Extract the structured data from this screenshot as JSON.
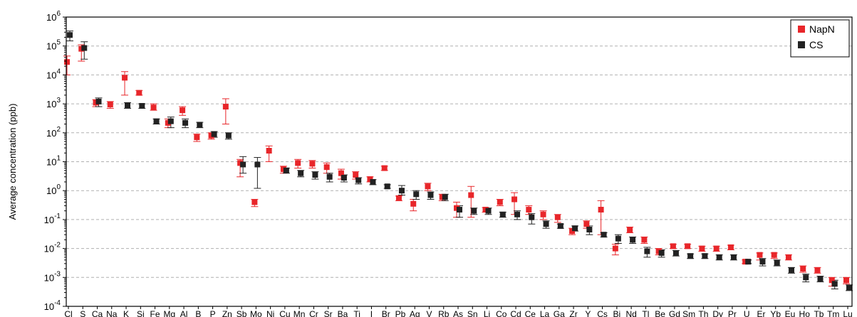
{
  "chart_data": {
    "type": "scatter",
    "title": "",
    "xlabel": "",
    "ylabel": "Average concentration (ppb)",
    "yscale": "log",
    "ylim": [
      0.0001,
      1000000
    ],
    "yticks": [
      {
        "base": "10",
        "exp": "-4",
        "value": 0.0001
      },
      {
        "base": "10",
        "exp": "-3",
        "value": 0.001
      },
      {
        "base": "10",
        "exp": "-2",
        "value": 0.01
      },
      {
        "base": "10",
        "exp": "-1",
        "value": 0.1
      },
      {
        "base": "10",
        "exp": "0",
        "value": 1
      },
      {
        "base": "10",
        "exp": "1",
        "value": 10
      },
      {
        "base": "10",
        "exp": "2",
        "value": 100
      },
      {
        "base": "10",
        "exp": "3",
        "value": 1000
      },
      {
        "base": "10",
        "exp": "4",
        "value": 10000
      },
      {
        "base": "10",
        "exp": "5",
        "value": 100000
      },
      {
        "base": "10",
        "exp": "6",
        "value": 1000000
      }
    ],
    "grid": "horizontal-dashed",
    "legend_position": "top-right",
    "categories": [
      "Cl",
      "S",
      "Ca",
      "Na",
      "K",
      "Si",
      "Fe",
      "Mg",
      "Al",
      "B",
      "P",
      "Zn",
      "Sb",
      "Mo",
      "Ni",
      "Cu",
      "Mn",
      "Cr",
      "Sr",
      "Ba",
      "Ti",
      "I",
      "Br",
      "Pb",
      "Ag",
      "V",
      "Rb",
      "As",
      "Sn",
      "Li",
      "Co",
      "Cd",
      "Ce",
      "La",
      "Ga",
      "Zr",
      "Y",
      "Cs",
      "Bi",
      "Nd",
      "Tl",
      "Be",
      "Gd",
      "Sm",
      "Th",
      "Dy",
      "Pr",
      "U",
      "Er",
      "Yb",
      "Eu",
      "Ho",
      "Tb",
      "Tm",
      "Lu"
    ],
    "series": [
      {
        "name": "NapN",
        "color": "#e8262a",
        "values": [
          28000,
          80000,
          1100,
          950,
          8000,
          2400,
          750,
          220,
          600,
          70,
          80,
          800,
          9,
          0.4,
          24,
          5.5,
          9,
          8.5,
          6.5,
          4,
          3.5,
          2.5,
          6,
          0.55,
          0.35,
          1.4,
          0.6,
          0.25,
          0.7,
          0.22,
          0.4,
          0.5,
          0.22,
          0.15,
          0.12,
          0.04,
          0.07,
          0.22,
          0.01,
          0.045,
          0.02,
          0.008,
          0.012,
          0.012,
          0.01,
          0.01,
          0.011,
          0.0035,
          0.006,
          0.006,
          0.005,
          0.002,
          0.0018,
          0.0008,
          0.0008
        ],
        "err_low": [
          10000,
          30000,
          800,
          700,
          2000,
          2000,
          600,
          150,
          400,
          50,
          60,
          200,
          3,
          0.28,
          10,
          4,
          6,
          6,
          4,
          2.5,
          2.5,
          2,
          5,
          0.45,
          0.2,
          1,
          0.45,
          0.12,
          0.12,
          0.18,
          0.3,
          0.15,
          0.15,
          0.1,
          0.08,
          0.03,
          0.05,
          0.03,
          0.006,
          0.035,
          0.015,
          0.006,
          0.01,
          0.01,
          0.008,
          0.008,
          0.009,
          0.003,
          0.004,
          0.0045,
          0.004,
          0.0015,
          0.0014,
          0.0005,
          0.0006
        ],
        "err_high": [
          45000,
          110000,
          1400,
          1200,
          13000,
          2900,
          1000,
          300,
          800,
          90,
          100,
          1500,
          12,
          0.5,
          35,
          7,
          12,
          11,
          9,
          5.5,
          4.5,
          3,
          7,
          0.65,
          0.5,
          1.8,
          0.75,
          0.4,
          1.4,
          0.26,
          0.5,
          0.85,
          0.3,
          0.2,
          0.15,
          0.05,
          0.09,
          0.45,
          0.014,
          0.055,
          0.025,
          0.01,
          0.014,
          0.014,
          0.012,
          0.012,
          0.013,
          0.004,
          0.007,
          0.007,
          0.006,
          0.0025,
          0.0022,
          0.001,
          0.001
        ]
      },
      {
        "name": "CS",
        "color": "#222222",
        "values": [
          240000,
          85000,
          1200,
          null,
          900,
          850,
          250,
          250,
          220,
          190,
          90,
          80,
          8,
          8,
          null,
          5,
          4,
          3.5,
          3,
          2.8,
          2.3,
          2,
          1.4,
          1,
          0.75,
          0.7,
          0.6,
          0.22,
          0.2,
          0.2,
          0.15,
          0.15,
          0.12,
          0.07,
          0.06,
          0.05,
          0.045,
          0.03,
          0.022,
          0.02,
          0.008,
          0.007,
          0.007,
          0.0055,
          0.0055,
          0.005,
          0.005,
          0.0035,
          0.0035,
          0.0032,
          0.0018,
          0.001,
          0.0009,
          0.0006,
          0.00045
        ],
        "err_low": [
          150000,
          35000,
          800,
          null,
          700,
          700,
          200,
          150,
          150,
          150,
          70,
          60,
          4,
          1.2,
          null,
          4,
          3,
          2.5,
          2,
          2,
          1.7,
          1.6,
          1.2,
          0.7,
          0.5,
          0.5,
          0.45,
          0.12,
          0.15,
          0.15,
          0.12,
          0.1,
          0.07,
          0.05,
          0.05,
          0.04,
          0.03,
          0.025,
          0.015,
          0.015,
          0.005,
          0.005,
          0.0055,
          0.0045,
          0.0045,
          0.004,
          0.004,
          0.003,
          0.0025,
          0.0025,
          0.0014,
          0.0007,
          0.0007,
          0.0004,
          0.00035
        ],
        "err_high": [
          330000,
          140000,
          1600,
          null,
          1100,
          1000,
          300,
          350,
          300,
          230,
          110,
          100,
          15,
          14,
          null,
          6,
          5,
          4.5,
          4,
          3.5,
          2.8,
          2.4,
          1.6,
          1.5,
          1,
          0.9,
          0.75,
          0.3,
          0.25,
          0.25,
          0.18,
          0.2,
          0.16,
          0.09,
          0.07,
          0.06,
          0.06,
          0.035,
          0.03,
          0.025,
          0.011,
          0.009,
          0.0085,
          0.0065,
          0.0065,
          0.006,
          0.006,
          0.004,
          0.0045,
          0.004,
          0.0022,
          0.0013,
          0.0011,
          0.0008,
          0.00055
        ]
      }
    ]
  }
}
